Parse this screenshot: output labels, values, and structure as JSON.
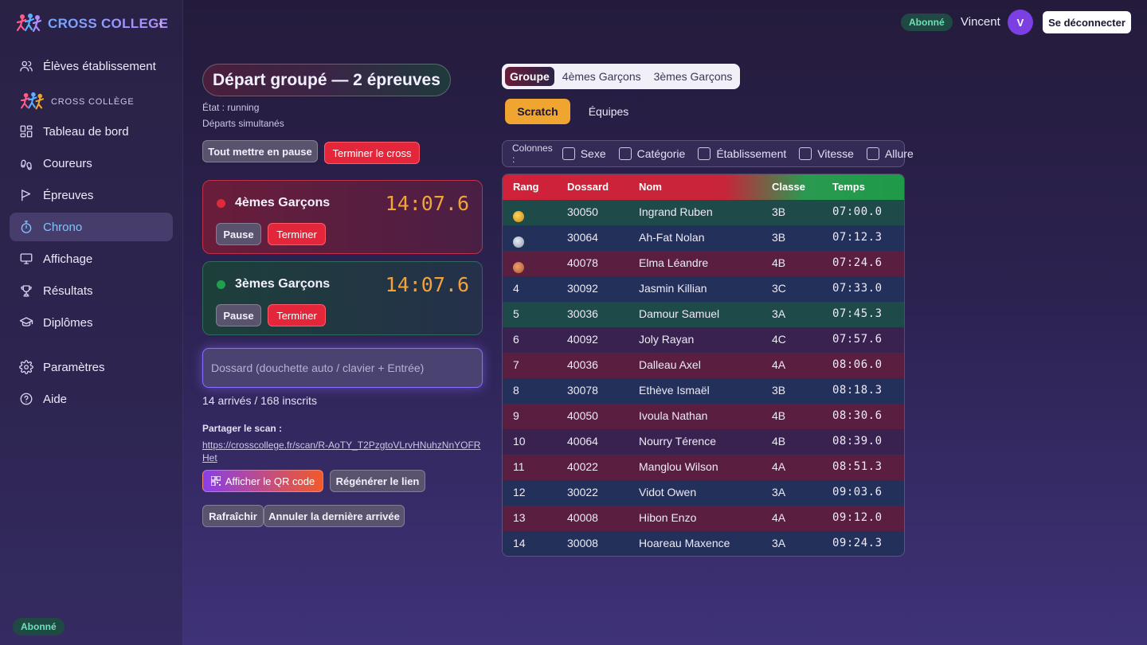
{
  "sidebar": {
    "brand": "CROSS COLLEGE",
    "section_label": "CROSS COLLÈGE",
    "items": [
      {
        "label": "Élèves établissement"
      },
      {
        "label": "Tableau de bord"
      },
      {
        "label": "Coureurs"
      },
      {
        "label": "Épreuves"
      },
      {
        "label": "Chrono"
      },
      {
        "label": "Affichage"
      },
      {
        "label": "Résultats"
      },
      {
        "label": "Diplômes"
      },
      {
        "label": "Paramètres"
      },
      {
        "label": "Aide"
      }
    ],
    "active_item": "Chrono",
    "badge": "Abonné"
  },
  "topbar": {
    "badge": "Abonné",
    "user_name": "Vincent",
    "avatar_initial": "V",
    "logout": "Se déconnecter"
  },
  "race": {
    "title": "Départ groupé — 2 épreuves",
    "state": "État : running",
    "mode": "Départs simultanés",
    "pause_all": "Tout mettre en pause",
    "finish_cross": "Terminer le cross",
    "cards": [
      {
        "name": "4èmes Garçons",
        "time": "14:07.6",
        "pause": "Pause",
        "stop": "Terminer",
        "status_color": "#e02a3a"
      },
      {
        "name": "3èmes Garçons",
        "time": "14:07.6",
        "pause": "Pause",
        "stop": "Terminer",
        "status_color": "#1fa04e"
      }
    ],
    "bib_placeholder": "Dossard (douchette auto / clavier + Entrée)",
    "arrivals": "14 arrivés / 168 inscrits",
    "share_label": "Partager le scan :",
    "share_url": "https://crosscollege.fr/scan/R-AoTY_T2PzgtoVLrvHNuhzNnYOFRHet",
    "show_qr": "Afficher le QR code",
    "regen_link": "Régénérer le lien",
    "refresh": "Rafraîchir",
    "undo_last": "Annuler la dernière arrivée"
  },
  "results_panel": {
    "tabs": [
      "Groupe",
      "4èmes Garçons",
      "3èmes Garçons"
    ],
    "active_tab": "Groupe",
    "views": [
      "Scratch",
      "Équipes"
    ],
    "active_view": "Scratch",
    "columns_label": "Colonnes :",
    "column_options": [
      "Sexe",
      "Catégorie",
      "Établissement",
      "Vitesse",
      "Allure"
    ],
    "headers": [
      "Rang",
      "Dossard",
      "Nom",
      "Classe",
      "Temps"
    ],
    "rows": [
      {
        "rank": "",
        "medal": "gold",
        "bib": "30050",
        "name": "Ingrand Ruben",
        "class": "3B",
        "time": "07:00.0"
      },
      {
        "rank": "",
        "medal": "silver",
        "bib": "30064",
        "name": "Ah-Fat Nolan",
        "class": "3B",
        "time": "07:12.3"
      },
      {
        "rank": "",
        "medal": "bronze",
        "bib": "40078",
        "name": "Elma Léandre",
        "class": "4B",
        "time": "07:24.6"
      },
      {
        "rank": "4",
        "bib": "30092",
        "name": "Jasmin Killian",
        "class": "3C",
        "time": "07:33.0"
      },
      {
        "rank": "5",
        "bib": "30036",
        "name": "Damour Samuel",
        "class": "3A",
        "time": "07:45.3"
      },
      {
        "rank": "6",
        "bib": "40092",
        "name": "Joly Rayan",
        "class": "4C",
        "time": "07:57.6"
      },
      {
        "rank": "7",
        "bib": "40036",
        "name": "Dalleau Axel",
        "class": "4A",
        "time": "08:06.0"
      },
      {
        "rank": "8",
        "bib": "30078",
        "name": "Ethève Ismaël",
        "class": "3B",
        "time": "08:18.3"
      },
      {
        "rank": "9",
        "bib": "40050",
        "name": "Ivoula Nathan",
        "class": "4B",
        "time": "08:30.6"
      },
      {
        "rank": "10",
        "bib": "40064",
        "name": "Nourry Térence",
        "class": "4B",
        "time": "08:39.0"
      },
      {
        "rank": "11",
        "bib": "40022",
        "name": "Manglou Wilson",
        "class": "4A",
        "time": "08:51.3"
      },
      {
        "rank": "12",
        "bib": "30022",
        "name": "Vidot Owen",
        "class": "3A",
        "time": "09:03.6"
      },
      {
        "rank": "13",
        "bib": "40008",
        "name": "Hibon Enzo",
        "class": "4A",
        "time": "09:12.0"
      },
      {
        "rank": "14",
        "bib": "30008",
        "name": "Hoareau Maxence",
        "class": "3A",
        "time": "09:24.3"
      }
    ],
    "row_colors": [
      "#1f4a4a",
      "#22305a",
      "#5a1f40",
      "#22305a",
      "#1f4a4a",
      "#3a2250",
      "#5a1f40",
      "#22305a",
      "#5a1f40",
      "#3a2250",
      "#5a1f40",
      "#22305a",
      "#5a1f40",
      "#22305a"
    ]
  }
}
